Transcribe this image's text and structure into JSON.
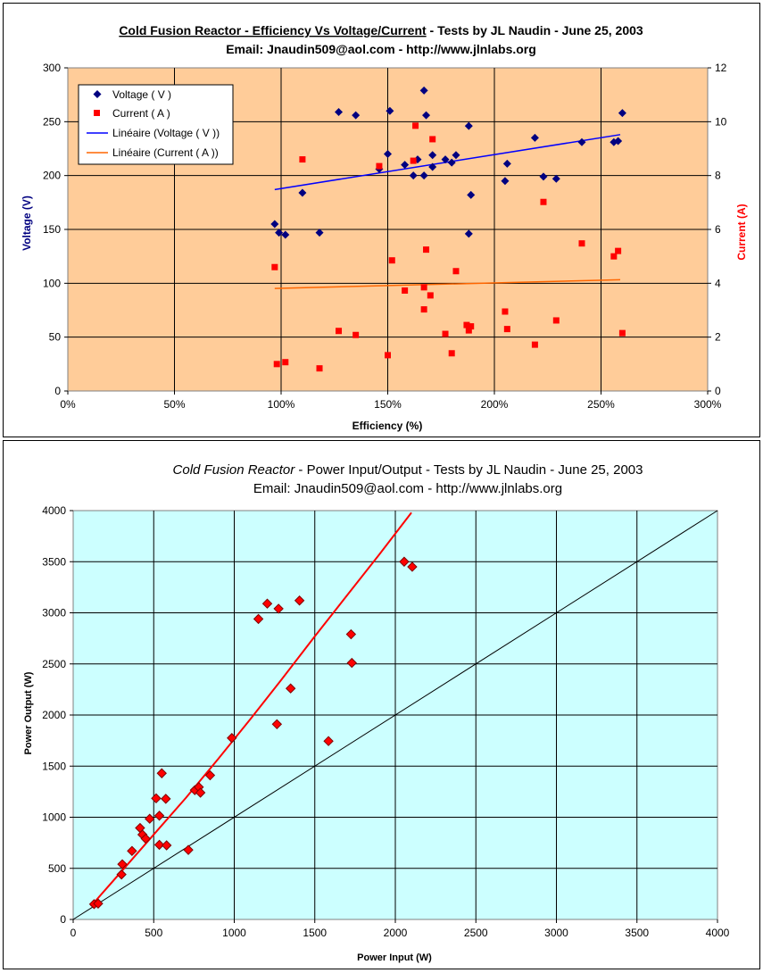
{
  "chart_data": [
    {
      "type": "scatter",
      "title_parts": {
        "t1": "Cold Fusion Reactor - Efficiency Vs Voltage/Current",
        "t2": " - Tests by JL Naudin - June 25, 2003"
      },
      "subtitle": "Email: Jnaudin509@aol.com - http://www.jlnlabs.org",
      "xlabel": "Efficiency (%)",
      "ylabel": "Voltage (V)",
      "y2label": "Current (A)",
      "xlim": [
        0,
        300
      ],
      "ylim": [
        0,
        300
      ],
      "y2lim": [
        0,
        12
      ],
      "x_ticks": [
        "0%",
        "50%",
        "100%",
        "150%",
        "200%",
        "250%",
        "300%"
      ],
      "y_ticks": [
        "0",
        "50",
        "100",
        "150",
        "200",
        "250",
        "300"
      ],
      "y2_ticks": [
        "0",
        "2",
        "4",
        "6",
        "8",
        "10",
        "12"
      ],
      "grid": true,
      "plot_bg": "#FFCC99",
      "legend_position": "top-left",
      "legend": [
        "Voltage ( V )",
        "Current ( A )",
        "Linéaire (Voltage ( V ))",
        "Linéaire (Current ( A ))"
      ],
      "series": [
        {
          "name": "Voltage ( V )",
          "axis": "left",
          "marker": "diamond",
          "color": "#000080",
          "points": [
            [
              97,
              155
            ],
            [
              99,
              147
            ],
            [
              102,
              145
            ],
            [
              110,
              184
            ],
            [
              118,
              147
            ],
            [
              127,
              259
            ],
            [
              135,
              256
            ],
            [
              146,
              206
            ],
            [
              150,
              220
            ],
            [
              151,
              260
            ],
            [
              158,
              210
            ],
            [
              162,
              200
            ],
            [
              164,
              215
            ],
            [
              167,
              279
            ],
            [
              167,
              200
            ],
            [
              168,
              256
            ],
            [
              171,
              208
            ],
            [
              171,
              219
            ],
            [
              177,
              215
            ],
            [
              180,
              212
            ],
            [
              182,
              219
            ],
            [
              188,
              246
            ],
            [
              188,
              146
            ],
            [
              189,
              182
            ],
            [
              205,
              195
            ],
            [
              206,
              211
            ],
            [
              219,
              235
            ],
            [
              223,
              199
            ],
            [
              229,
              197
            ],
            [
              241,
              231
            ],
            [
              256,
              231
            ],
            [
              258,
              232
            ],
            [
              260,
              258
            ]
          ]
        },
        {
          "name": "Current ( A )",
          "axis": "right",
          "marker": "square",
          "color": "#FF0000",
          "points": [
            [
              97,
              4.6
            ],
            [
              98,
              1.0
            ],
            [
              102,
              1.07
            ],
            [
              110,
              8.6
            ],
            [
              118,
              0.84
            ],
            [
              127,
              2.23
            ],
            [
              135,
              2.08
            ],
            [
              146,
              8.35
            ],
            [
              150,
              1.33
            ],
            [
              152,
              4.85
            ],
            [
              158,
              3.73
            ],
            [
              162,
              8.55
            ],
            [
              163,
              9.85
            ],
            [
              167,
              3.03
            ],
            [
              167,
              3.85
            ],
            [
              168,
              5.25
            ],
            [
              170,
              3.55
            ],
            [
              171,
              9.35
            ],
            [
              177,
              2.12
            ],
            [
              180,
              1.4
            ],
            [
              182,
              4.45
            ],
            [
              187,
              2.45
            ],
            [
              188,
              2.25
            ],
            [
              189,
              2.4
            ],
            [
              205,
              2.95
            ],
            [
              206,
              2.3
            ],
            [
              219,
              1.72
            ],
            [
              223,
              7.02
            ],
            [
              229,
              2.62
            ],
            [
              241,
              5.48
            ],
            [
              256,
              5.0
            ],
            [
              258,
              5.2
            ],
            [
              260,
              2.15
            ]
          ]
        },
        {
          "name": "Linéaire (Voltage ( V ))",
          "axis": "left",
          "type": "line",
          "color": "#0000FF",
          "points": [
            [
              97,
              187
            ],
            [
              259,
              238
            ]
          ]
        },
        {
          "name": "Linéaire (Current ( A ))",
          "axis": "right",
          "type": "line",
          "color": "#FF6600",
          "points": [
            [
              97,
              3.81
            ],
            [
              259,
              4.13
            ]
          ]
        }
      ]
    },
    {
      "type": "scatter",
      "title_parts": {
        "t1": "Cold Fusion Reactor",
        "t2": "  - Power Input/Output - Tests by JL Naudin - June 25, 2003"
      },
      "subtitle": "Email: Jnaudin509@aol.com - http://www.jlnlabs.org",
      "xlabel": "Power Input (W)",
      "ylabel": "Power Output (W)",
      "xlim": [
        0,
        4000
      ],
      "ylim": [
        0,
        4000
      ],
      "x_ticks": [
        "0",
        "500",
        "1000",
        "1500",
        "2000",
        "2500",
        "3000",
        "3500",
        "4000"
      ],
      "y_ticks": [
        "0",
        "500",
        "1000",
        "1500",
        "2000",
        "2500",
        "3000",
        "3500",
        "4000"
      ],
      "grid": true,
      "plot_bg": "#CCFFFF",
      "series": [
        {
          "marker": "diamond",
          "color": "#FF0000",
          "edge": "#800000",
          "points": [
            [
              130,
              150
            ],
            [
              155,
              155
            ],
            [
              300,
              440
            ],
            [
              305,
              540
            ],
            [
              365,
              670
            ],
            [
              415,
              895
            ],
            [
              430,
              830
            ],
            [
              450,
              790
            ],
            [
              475,
              985
            ],
            [
              515,
              1185
            ],
            [
              535,
              1015
            ],
            [
              535,
              730
            ],
            [
              550,
              1430
            ],
            [
              575,
              1180
            ],
            [
              580,
              725
            ],
            [
              715,
              680
            ],
            [
              755,
              1265
            ],
            [
              780,
              1295
            ],
            [
              790,
              1240
            ],
            [
              850,
              1410
            ],
            [
              985,
              1775
            ],
            [
              1150,
              2940
            ],
            [
              1205,
              3090
            ],
            [
              1265,
              1910
            ],
            [
              1275,
              3040
            ],
            [
              1350,
              2260
            ],
            [
              1405,
              3120
            ],
            [
              1585,
              1745
            ],
            [
              1725,
              2790
            ],
            [
              1730,
              2510
            ],
            [
              2055,
              3500
            ],
            [
              2105,
              3450
            ]
          ]
        },
        {
          "type": "trend",
          "color": "#FF0000",
          "points": [
            [
              110,
              130
            ],
            [
              300,
              470
            ],
            [
              500,
              830
            ],
            [
              700,
              1190
            ],
            [
              900,
              1570
            ],
            [
              1100,
              1960
            ],
            [
              1300,
              2360
            ],
            [
              1500,
              2770
            ],
            [
              1700,
              3170
            ],
            [
              1900,
              3570
            ],
            [
              2100,
              3980
            ]
          ]
        },
        {
          "type": "line",
          "color": "#000000",
          "points": [
            [
              0,
              0
            ],
            [
              4000,
              4000
            ]
          ]
        }
      ]
    }
  ]
}
